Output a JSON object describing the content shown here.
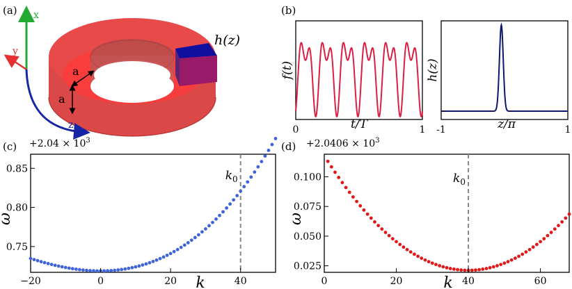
{
  "figure": {
    "panels": {
      "a": {
        "label": "(a)",
        "axes": {
          "x": "x",
          "y": "y",
          "z": "z"
        },
        "dimension_label": "a",
        "h_label": "h(z)",
        "colors": {
          "torus": "#e84040",
          "torus_dark": "#b83030",
          "cap": "#1010a0",
          "cap_purple": "#9a1a6a",
          "x_axis": "#22aa33",
          "y_axis": "#e53030",
          "z_axis": "#1525a5"
        }
      },
      "b": {
        "label": "(b)",
        "left": {
          "ylabel": "f(t)",
          "xlabel": "t/T",
          "xticks": [
            "0",
            "1"
          ],
          "line_color": "#dc1e45"
        },
        "right": {
          "ylabel": "h(z)",
          "xlabel": "z/π",
          "xticks": [
            "-1",
            "0",
            "1"
          ],
          "line_color": "#0f176d"
        }
      },
      "c": {
        "label": "(c)",
        "offset": "+2.04 × 10",
        "offset_exp": "3",
        "xlabel": "k",
        "ylabel": "ω",
        "marker": "k",
        "marker_sub": "0",
        "xticks": [
          "−20",
          "0",
          "20",
          "40"
        ],
        "yticks": [
          "0.75",
          "0.80",
          "0.85"
        ]
      },
      "d": {
        "label": "(d)",
        "offset": "+2.0406 × 10",
        "offset_exp": "3",
        "xlabel": "k",
        "ylabel": "ω",
        "marker": "k",
        "marker_sub": "0",
        "xticks": [
          "0",
          "20",
          "40",
          "60"
        ],
        "yticks": [
          "0.025",
          "0.050",
          "0.075",
          "0.100"
        ]
      }
    }
  },
  "chart_data": [
    {
      "type": "line",
      "panel": "b-left",
      "xlabel": "t/T",
      "ylabel": "f(t)",
      "xlim": [
        0,
        1
      ],
      "x_ticks": [
        0,
        1
      ],
      "y_ticks": [],
      "color": "#dc1e45",
      "description_values": {
        "period_count": 6,
        "peak_pattern": "alternating tall and short peaks"
      },
      "series": [
        {
          "name": "",
          "formula": "f",
          "samples": 600
        }
      ]
    },
    {
      "type": "line",
      "panel": "b-right",
      "xlabel": "z/π",
      "ylabel": "h(z)",
      "xlim": [
        -1,
        1
      ],
      "x_ticks": [
        -1,
        0,
        1
      ],
      "y_ticks": [],
      "color": "#0f176d",
      "peak_center": -0.05,
      "peak_width": 0.03,
      "baseline": 0.0
    },
    {
      "type": "scatter",
      "panel": "c",
      "xlabel": "k",
      "ylabel": "ω",
      "offset": "+2.04 × 10^3",
      "xlim": [
        -20,
        50
      ],
      "ylim": [
        0.717,
        0.868
      ],
      "x_ticks": [
        -20,
        0,
        20,
        40
      ],
      "y_ticks": [
        0.75,
        0.8,
        0.85
      ],
      "color": "#3f63d8",
      "k0": 40,
      "k_range": [
        -20,
        50
      ],
      "k_step": 1,
      "model": {
        "min_k": 0,
        "omega_min": 0.7188,
        "curvature": 4.77e-05,
        "omega_at_k0": 0.818
      }
    },
    {
      "type": "scatter",
      "panel": "d",
      "xlabel": "k",
      "ylabel": "ω",
      "offset": "+2.0406 × 10^3",
      "xlim": [
        0,
        68
      ],
      "ylim": [
        0.0195,
        0.119
      ],
      "x_ticks": [
        0,
        20,
        40,
        60
      ],
      "y_ticks": [
        0.025,
        0.05,
        0.075,
        0.1
      ],
      "color": "#e01818",
      "k0": 40,
      "k_range": [
        1,
        68
      ],
      "k_step": 1,
      "model": {
        "min_k": 40,
        "omega_min": 0.0212,
        "omega_at_k1": 0.113
      }
    }
  ]
}
